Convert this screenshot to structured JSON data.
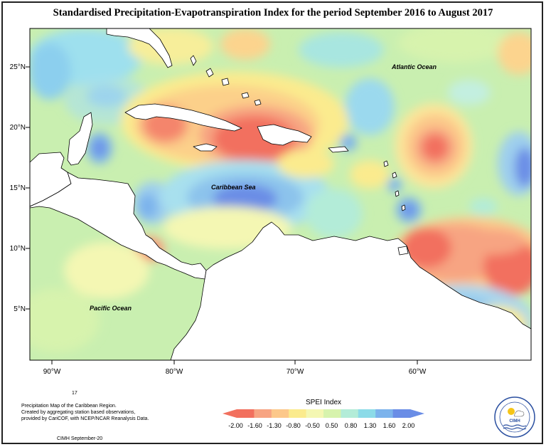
{
  "title": "Standardised Precipitation-Evapotranspiration Index for the period September 2016 to August 2017",
  "map": {
    "lat_labels": [
      "25°N",
      "20°N",
      "15°N",
      "10°N",
      "5°N"
    ],
    "lon_labels": [
      "90°W",
      "80°W",
      "70°W",
      "60°W"
    ],
    "place_labels": {
      "atlantic": "Atlantic Ocean",
      "caribbean": "Caribbean Sea",
      "pacific": "Pacific Ocean"
    }
  },
  "legend": {
    "title": "SPEI Index",
    "values": [
      "-2.00",
      "-1.60",
      "-1.30",
      "-0.80",
      "-0.50",
      "0.50",
      "0.80",
      "1.30",
      "1.60",
      "2.00"
    ],
    "colors": [
      "#f2705e",
      "#f7a482",
      "#fcc88a",
      "#fbeb8e",
      "#f4f7b3",
      "#d7f3ad",
      "#b3ecd8",
      "#8cdbe8",
      "#7cb3ec",
      "#6a8de6"
    ]
  },
  "footer": {
    "number": "17",
    "line1": "Precipitation Map of the Caribbean Region.",
    "line2": "Created by aggregating station based observations,",
    "line3": "provided by CariCOF, with NCEP/NCAR Reanalysis Data.",
    "credit": "CIMH September-20"
  },
  "logo": {
    "text": "CIMH",
    "ring_text_top": "CARIBBEAN INSTITUTE FOR",
    "ring_text_bottom": "METEOROLOGY AND HYDROLOGY"
  }
}
